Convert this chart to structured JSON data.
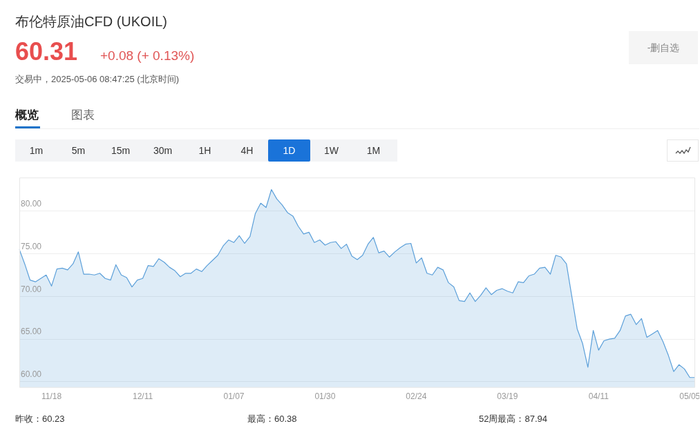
{
  "chart_data": {
    "type": "area",
    "title": "布伦特原油CFD (UKOIL)",
    "annotations": [
      "60.31",
      "+0.08 (+ 0.13%)",
      "交易中，2025-05-06 08:47:25 (北京时间)",
      "-删自选",
      "概览",
      "图表",
      "1m",
      "5m",
      "15m",
      "30m",
      "1H",
      "4H",
      "1D",
      "1W",
      "1M",
      "昨收：60.23",
      "最高：60.38",
      "52周最高：87.94"
    ],
    "categories": [
      null,
      null,
      null,
      null,
      null,
      null,
      "11/18",
      null,
      null,
      null,
      null,
      null,
      null,
      null,
      null,
      null,
      null,
      null,
      null,
      null,
      null,
      null,
      null,
      "12/11",
      null,
      null,
      null,
      null,
      null,
      null,
      null,
      null,
      null,
      null,
      null,
      null,
      null,
      null,
      null,
      null,
      "01/07",
      null,
      null,
      null,
      null,
      null,
      null,
      null,
      null,
      null,
      null,
      null,
      null,
      null,
      null,
      null,
      null,
      "01/30",
      null,
      null,
      null,
      null,
      null,
      null,
      null,
      null,
      null,
      null,
      null,
      null,
      null,
      null,
      null,
      null,
      "02/24",
      null,
      null,
      null,
      null,
      null,
      null,
      null,
      null,
      null,
      null,
      null,
      null,
      null,
      null,
      null,
      null,
      "03/19",
      null,
      null,
      null,
      null,
      null,
      null,
      null,
      null,
      null,
      null,
      null,
      null,
      null,
      null,
      null,
      null,
      "04/11",
      null,
      null,
      null,
      null,
      null,
      null,
      null,
      null,
      null,
      null,
      null,
      null,
      null,
      null,
      null,
      null,
      "05/05",
      null
    ],
    "series": [
      {
        "color": "#5b9fd9",
        "values": [
          75.5,
          73.8,
          71.9,
          71.7,
          72.1,
          72.5,
          71.2,
          73.2,
          73.3,
          73.1,
          73.8,
          75.2,
          72.6,
          72.6,
          72.5,
          72.7,
          72.1,
          71.9,
          73.7,
          72.5,
          72.2,
          71.1,
          71.9,
          72.1,
          73.6,
          73.5,
          74.4,
          74.0,
          73.4,
          73.0,
          72.3,
          72.7,
          72.7,
          73.2,
          72.9,
          73.6,
          74.2,
          74.8,
          75.9,
          76.6,
          76.3,
          77.1,
          76.2,
          77.0,
          79.7,
          80.9,
          80.4,
          82.5,
          81.4,
          80.7,
          79.8,
          79.4,
          78.2,
          77.3,
          77.5,
          76.3,
          76.6,
          76.0,
          76.3,
          76.4,
          75.6,
          76.1,
          74.7,
          74.3,
          74.8,
          76.1,
          76.9,
          75.1,
          75.3,
          74.6,
          75.2,
          75.7,
          76.1,
          76.2,
          73.9,
          74.5,
          72.7,
          72.5,
          73.4,
          73.1,
          71.6,
          71.1,
          69.5,
          69.4,
          70.4,
          69.4,
          70.1,
          71.0,
          70.2,
          70.7,
          70.9,
          70.6,
          70.4,
          71.7,
          71.6,
          72.4,
          72.6,
          73.3,
          73.4,
          72.6,
          74.8,
          74.6,
          73.8,
          70.0,
          66.2,
          64.5,
          61.7,
          66.0,
          63.7,
          64.8,
          65.0,
          65.1,
          66.0,
          67.7,
          67.9,
          66.7,
          67.4,
          65.2,
          65.6,
          66.0,
          64.7,
          63.1,
          61.2,
          62.0,
          61.5,
          60.5,
          60.5
        ]
      }
    ],
    "ylim": [
      59.3,
      83.9
    ],
    "yticks": [
      {
        "value": 60,
        "label": "60.00"
      },
      {
        "value": 65,
        "label": "65.00"
      },
      {
        "value": 70,
        "label": "70.00"
      },
      {
        "value": 75,
        "label": "75.00"
      },
      {
        "value": 80,
        "label": "80.00"
      }
    ],
    "grid": "y",
    "legend": false
  }
}
